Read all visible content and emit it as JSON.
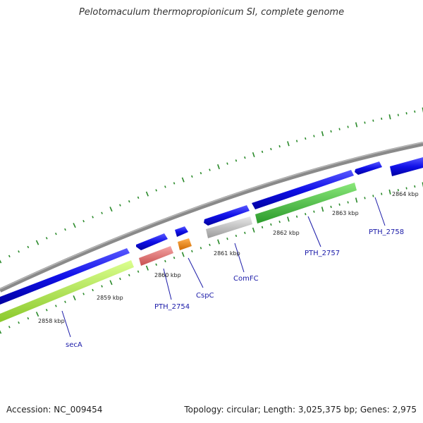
{
  "title": "Pelotomaculum thermopropionicum SI, complete genome",
  "footer": {
    "accession": "Accession: NC_009454",
    "summary": "Topology: circular; Length: 3,025,375 bp; Genes: 2,975"
  },
  "scale_labels": [
    "2858 kbp",
    "2859 kbp",
    "2860 kbp",
    "2861 kbp",
    "2862 kbp",
    "2863 kbp",
    "2864 kbp"
  ],
  "gene_labels": [
    "secA",
    "PTH_2754",
    "CspC",
    "ComFC",
    "PTH_2757",
    "PTH_2758"
  ],
  "colors": {
    "backbone": "#8a8a8a",
    "forward_gene": "#1414e0",
    "secA": "#b4f03c",
    "PTH_2754": "#e87878",
    "CspC": "#f08a14",
    "ComFC": "#c0c0c0",
    "PTH_2757": "#46c83c",
    "tick": "#2a8a2a"
  }
}
